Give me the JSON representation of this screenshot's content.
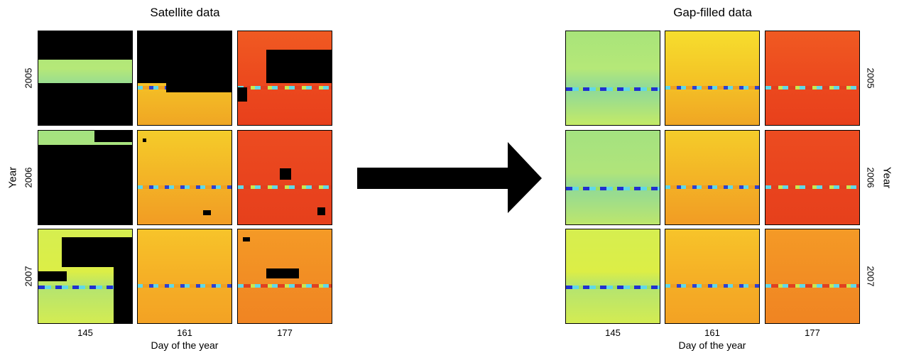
{
  "left": {
    "title": "Satellite data",
    "columns": [
      "145",
      "161",
      "177"
    ],
    "rows": [
      "2005",
      "2006",
      "2007"
    ],
    "x_label": "Day of the year",
    "y_label": "Year"
  },
  "right": {
    "title": "Gap-filled data",
    "columns": [
      "145",
      "161",
      "177"
    ],
    "rows": [
      "2005",
      "2006",
      "2007"
    ],
    "x_label": "Day of the year",
    "y_label": "Year"
  }
}
